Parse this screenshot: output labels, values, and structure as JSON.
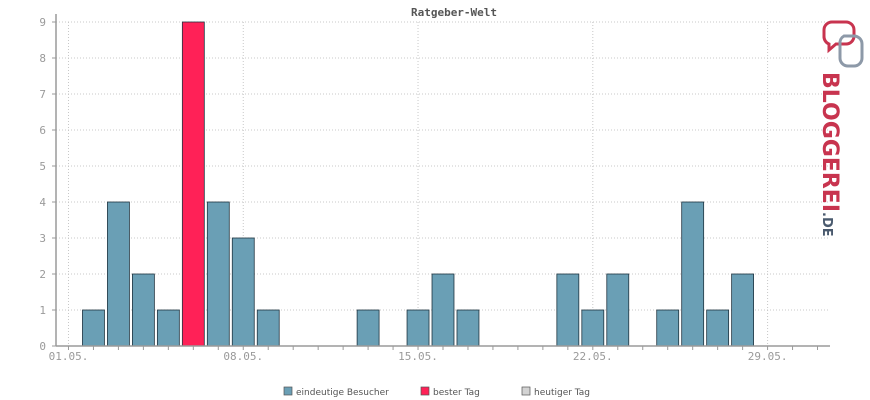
{
  "chart_data": {
    "type": "bar",
    "title": "Ratgeber-Welt",
    "xlabel": "",
    "ylabel": "",
    "ylim": [
      0,
      9
    ],
    "yticks": [
      0,
      1,
      2,
      3,
      4,
      5,
      6,
      7,
      8,
      9
    ],
    "day_count": 31,
    "x_tick_labels": [
      {
        "day": 1,
        "label": "01.05."
      },
      {
        "day": 8,
        "label": "08.05."
      },
      {
        "day": 15,
        "label": "15.05."
      },
      {
        "day": 22,
        "label": "22.05."
      },
      {
        "day": 29,
        "label": "29.05."
      }
    ],
    "series": [
      {
        "name": "eindeutige Besucher",
        "key": "visitors",
        "values": [
          0,
          1,
          4,
          2,
          1,
          9,
          4,
          3,
          1,
          0,
          0,
          0,
          1,
          0,
          1,
          2,
          1,
          0,
          0,
          0,
          2,
          1,
          2,
          0,
          1,
          4,
          1,
          2,
          0,
          0,
          0
        ]
      }
    ],
    "best_day": 6,
    "legend": [
      {
        "label": "eindeutige Besucher",
        "color": "#6a9fb5"
      },
      {
        "label": "bester Tag",
        "color": "#ff2157"
      },
      {
        "label": "heutiger Tag",
        "color": "#d3d3d3"
      }
    ],
    "colors": {
      "bar": "#6a9fb5",
      "best": "#ff2157",
      "today": "#d3d3d3",
      "axis": "#9a9a9a",
      "grid": "#c8c8c8"
    }
  },
  "brand": {
    "logo_text": "BLOGGEREI",
    "logo_suffix": ".DE",
    "colors": {
      "red": "#c8344f",
      "slate": "#4a5a6e"
    }
  }
}
